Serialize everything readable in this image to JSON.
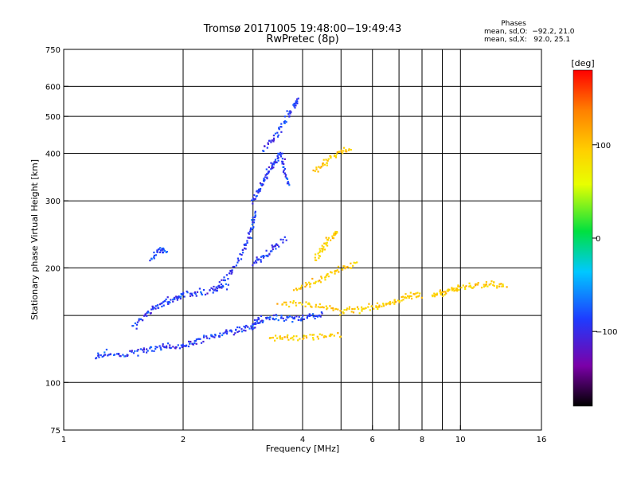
{
  "chart_data": {
    "type": "scatter",
    "title": "Tromsø 20171005 19:48:00−19:49:43",
    "subtitle": "RwPretec (8p)",
    "xlabel": "Frequency [MHz]",
    "ylabel": "Stationary phase Virtual Height [km]",
    "x_scale": "log",
    "y_scale": "log",
    "xlim": [
      1,
      16
    ],
    "ylim": [
      75,
      750
    ],
    "x_ticks": [
      1,
      2,
      4,
      6,
      8,
      10,
      16
    ],
    "x_ticks_minor": [
      3,
      5,
      7,
      9
    ],
    "y_ticks": [
      75,
      100,
      200,
      300,
      400,
      500,
      600,
      750
    ],
    "y_ticks_minor": [
      150
    ],
    "grid": true,
    "colorbar": {
      "label": "[deg]",
      "range": [
        -180,
        180
      ],
      "ticks": [
        100,
        0,
        -100
      ],
      "colormap": [
        "#000000",
        "#7b00a8",
        "#1e3cff",
        "#00c8ff",
        "#00e040",
        "#e8ff00",
        "#ffd000",
        "#ff8000",
        "#ff0000"
      ]
    },
    "stats": {
      "header": "Phases",
      "o_mode": "mean, sd,O:  −92.2, 21.0",
      "x_mode": "mean, sd,X:   92.0, 25.1"
    },
    "series": [
      {
        "mode": "O",
        "phase_mean": -92.2,
        "phase_sd": 21.0,
        "traces": [
          {
            "f": [
              1.2,
              1.3,
              1.45,
              1.6,
              1.75,
              1.9,
              2.05,
              2.2,
              2.4,
              2.6,
              2.8,
              3.0,
              3.1
            ],
            "h": [
              117,
              119,
              118,
              122,
              124,
              124,
              126,
              129,
              133,
              136,
              138,
              140,
              145
            ]
          },
          {
            "f": [
              3.05,
              3.3,
              3.6,
              3.9,
              4.2,
              4.5
            ],
            "h": [
              146,
              148,
              148,
              148,
              150,
              150
            ]
          },
          {
            "f": [
              1.5,
              1.6,
              1.7,
              1.8,
              1.9,
              2.0,
              2.2,
              2.4,
              2.6
            ],
            "h": [
              140,
              150,
              158,
              162,
              166,
              170,
              172,
              176,
              180
            ]
          },
          {
            "f": [
              2.4,
              2.6,
              2.75,
              2.9,
              3.0,
              3.05
            ],
            "h": [
              175,
              190,
              210,
              235,
              260,
              280
            ]
          },
          {
            "f": [
              3.0,
              3.1,
              3.2,
              3.3,
              3.4,
              3.5,
              3.6,
              3.7
            ],
            "h": [
              300,
              320,
              340,
              360,
              380,
              400,
              360,
              330
            ]
          },
          {
            "f": [
              3.0,
              3.2,
              3.4,
              3.6
            ],
            "h": [
              205,
              215,
              225,
              240
            ]
          },
          {
            "f": [
              3.2,
              3.4,
              3.6,
              3.8,
              3.9
            ],
            "h": [
              410,
              440,
              480,
              530,
              560
            ]
          },
          {
            "f": [
              1.65,
              1.75,
              1.8
            ],
            "h": [
              210,
              225,
              220
            ]
          }
        ]
      },
      {
        "mode": "X",
        "phase_mean": 92.0,
        "phase_sd": 25.1,
        "traces": [
          {
            "f": [
              3.5,
              4.0,
              4.5,
              5.0,
              5.5,
              6.0,
              6.5,
              7.0,
              7.5,
              8.0
            ],
            "h": [
              160,
              162,
              158,
              155,
              155,
              158,
              160,
              165,
              170,
              168
            ]
          },
          {
            "f": [
              3.8,
              4.2,
              4.6,
              5.0,
              5.5
            ],
            "h": [
              175,
              182,
              190,
              200,
              205
            ]
          },
          {
            "f": [
              4.3,
              4.5,
              4.7,
              4.9
            ],
            "h": [
              210,
              225,
              240,
              250
            ]
          },
          {
            "f": [
              4.3,
              4.6,
              4.9,
              5.3
            ],
            "h": [
              360,
              380,
              400,
              410
            ]
          },
          {
            "f": [
              3.3,
              3.6,
              4.0,
              4.5,
              5.0
            ],
            "h": [
              132,
              131,
              132,
              132,
              133
            ]
          },
          {
            "f": [
              8.5,
              9.0,
              9.5,
              10.0,
              11.0,
              12.0,
              13.0
            ],
            "h": [
              170,
              172,
              175,
              178,
              180,
              182,
              180
            ]
          }
        ]
      }
    ]
  }
}
